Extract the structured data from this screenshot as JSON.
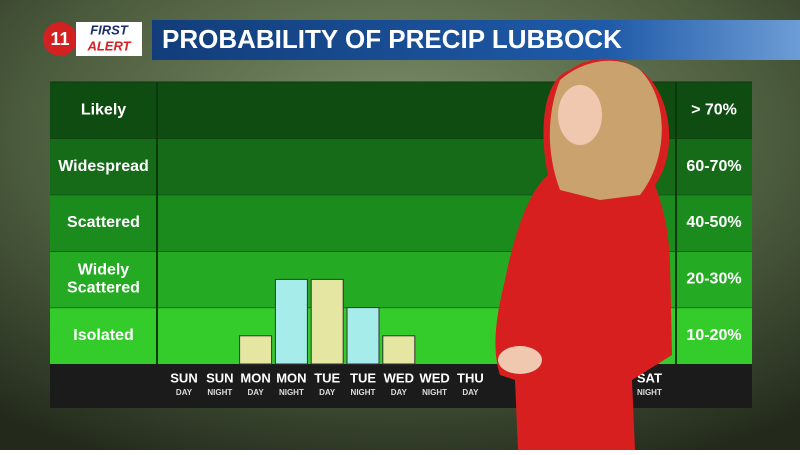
{
  "logo": {
    "number": "11",
    "line1": "FIRST",
    "line2": "ALERT"
  },
  "chart_data": {
    "type": "bar",
    "title": "PROBABILITY OF PRECIP LUBBOCK",
    "categories": [
      "SUN",
      "SUN",
      "MON",
      "MON",
      "TUE",
      "TUE",
      "WED",
      "WED",
      "THU",
      null,
      null,
      null,
      null,
      "SAT"
    ],
    "category_sublabels": [
      "DAY",
      "NIGHT",
      "DAY",
      "NIGHT",
      "DAY",
      "NIGHT",
      "DAY",
      "NIGHT",
      "DAY",
      null,
      null,
      null,
      null,
      "NIGHT"
    ],
    "values": [
      0,
      0,
      0.5,
      1.5,
      1.5,
      1,
      0.5,
      0,
      0,
      null,
      null,
      null,
      null,
      0
    ],
    "bar_colors": [
      "#e6e6a3",
      "#a6ecea",
      "#e6e6a3",
      "#a6ecea",
      "#e6e6a3",
      "#a6ecea",
      "#e6e6a3",
      "#a6ecea",
      "#e6e6a3",
      "#a6ecea",
      "#e6e6a3",
      "#a6ecea",
      "#e6e6a3",
      "#a6ecea"
    ],
    "ylim": [
      0,
      5
    ],
    "y_categories": [
      "Isolated",
      "Widely Scattered",
      "Scattered",
      "Widespread",
      "Likely"
    ],
    "y_range_labels": [
      "10-20%",
      "20-30%",
      "40-50%",
      "60-70%",
      "> 70%"
    ],
    "band_colors": [
      "#34cc2b",
      "#25ab23",
      "#1c8b1e",
      "#156b18",
      "#0f4c12"
    ]
  }
}
